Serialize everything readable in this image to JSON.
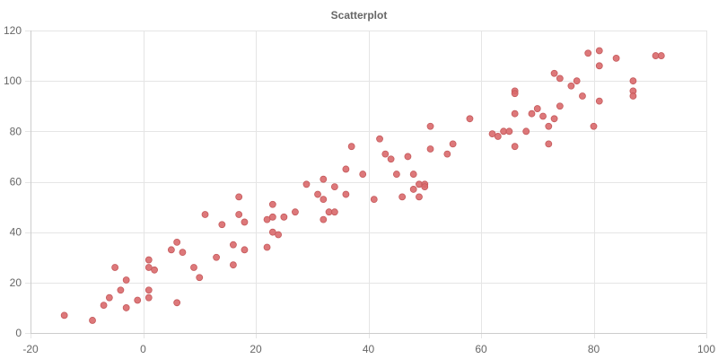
{
  "chart_data": {
    "type": "scatter",
    "title": "Scatterplot",
    "xlabel": "",
    "ylabel": "",
    "xlim": [
      -20,
      100
    ],
    "ylim": [
      0,
      120
    ],
    "x_ticks": [
      -20,
      0,
      20,
      40,
      60,
      80,
      100
    ],
    "y_ticks": [
      0,
      20,
      40,
      60,
      80,
      100,
      120
    ],
    "grid": true,
    "legend": "none",
    "point_color": "#d9696b",
    "series": [
      {
        "points": [
          [
            -14,
            7
          ],
          [
            -9,
            5
          ],
          [
            -7,
            11
          ],
          [
            -6,
            14
          ],
          [
            -5,
            26
          ],
          [
            -4,
            17
          ],
          [
            -3,
            21
          ],
          [
            -3,
            10
          ],
          [
            -1,
            13
          ],
          [
            1,
            29
          ],
          [
            1,
            26
          ],
          [
            1,
            17
          ],
          [
            1,
            14
          ],
          [
            2,
            25
          ],
          [
            5,
            33
          ],
          [
            6,
            36
          ],
          [
            6,
            12
          ],
          [
            7,
            32
          ],
          [
            9,
            26
          ],
          [
            10,
            22
          ],
          [
            11,
            47
          ],
          [
            13,
            30
          ],
          [
            14,
            43
          ],
          [
            16,
            35
          ],
          [
            16,
            27
          ],
          [
            17,
            54
          ],
          [
            17,
            47
          ],
          [
            18,
            44
          ],
          [
            18,
            33
          ],
          [
            22,
            45
          ],
          [
            22,
            34
          ],
          [
            23,
            51
          ],
          [
            23,
            46
          ],
          [
            23,
            40
          ],
          [
            24,
            39
          ],
          [
            25,
            46
          ],
          [
            27,
            48
          ],
          [
            29,
            59
          ],
          [
            31,
            55
          ],
          [
            32,
            61
          ],
          [
            32,
            53
          ],
          [
            32,
            45
          ],
          [
            33,
            48
          ],
          [
            34,
            58
          ],
          [
            34,
            48
          ],
          [
            36,
            65
          ],
          [
            36,
            55
          ],
          [
            37,
            74
          ],
          [
            39,
            63
          ],
          [
            41,
            53
          ],
          [
            42,
            77
          ],
          [
            43,
            71
          ],
          [
            44,
            69
          ],
          [
            45,
            63
          ],
          [
            46,
            54
          ],
          [
            47,
            70
          ],
          [
            48,
            63
          ],
          [
            48,
            57
          ],
          [
            49,
            59
          ],
          [
            49,
            54
          ],
          [
            50,
            59
          ],
          [
            50,
            58
          ],
          [
            51,
            82
          ],
          [
            51,
            73
          ],
          [
            54,
            71
          ],
          [
            55,
            75
          ],
          [
            58,
            85
          ],
          [
            62,
            79
          ],
          [
            63,
            78
          ],
          [
            64,
            80
          ],
          [
            65,
            80
          ],
          [
            66,
            96
          ],
          [
            66,
            95
          ],
          [
            66,
            87
          ],
          [
            66,
            74
          ],
          [
            68,
            80
          ],
          [
            69,
            87
          ],
          [
            70,
            89
          ],
          [
            71,
            86
          ],
          [
            72,
            82
          ],
          [
            72,
            75
          ],
          [
            73,
            103
          ],
          [
            73,
            85
          ],
          [
            74,
            101
          ],
          [
            74,
            90
          ],
          [
            76,
            98
          ],
          [
            77,
            100
          ],
          [
            78,
            94
          ],
          [
            79,
            111
          ],
          [
            80,
            82
          ],
          [
            81,
            112
          ],
          [
            81,
            106
          ],
          [
            81,
            92
          ],
          [
            84,
            109
          ],
          [
            87,
            100
          ],
          [
            87,
            96
          ],
          [
            87,
            94
          ],
          [
            91,
            110
          ],
          [
            92,
            110
          ]
        ]
      }
    ]
  }
}
